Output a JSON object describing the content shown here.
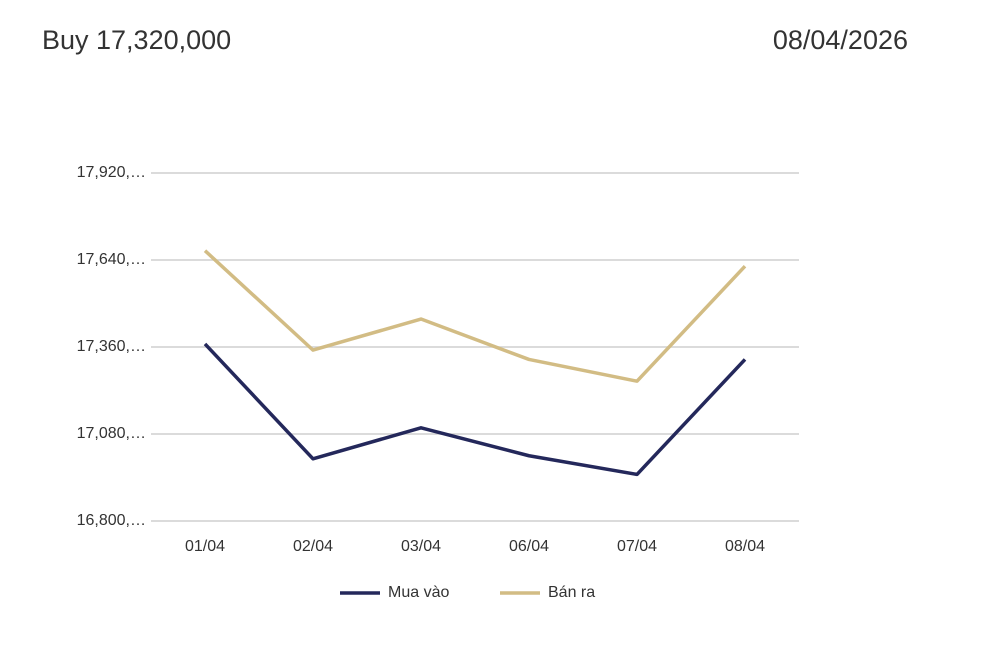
{
  "chart_data": {
    "type": "line",
    "title": "Buy 17,320,000",
    "subtitle": "08/04/2026",
    "categories": [
      "01/04",
      "02/04",
      "03/04",
      "06/04",
      "07/04",
      "08/04"
    ],
    "series": [
      {
        "name": "Mua vào",
        "color": "#24285b",
        "values": [
          17370000,
          17000000,
          17100000,
          17010000,
          16950000,
          17320000
        ]
      },
      {
        "name": "Bán ra",
        "color": "#d2bc84",
        "values": [
          17670000,
          17350000,
          17450000,
          17320000,
          17250000,
          17620000
        ]
      }
    ],
    "ylim": [
      16800000,
      17920000
    ],
    "yticks": [
      {
        "value": 16800000,
        "label": "16,800,…"
      },
      {
        "value": 17080000,
        "label": "17,080,…"
      },
      {
        "value": 17360000,
        "label": "17,360,…"
      },
      {
        "value": 17640000,
        "label": "17,640,…"
      },
      {
        "value": 17920000,
        "label": "17,920,…"
      }
    ],
    "grid": true,
    "legend": "bottom"
  }
}
